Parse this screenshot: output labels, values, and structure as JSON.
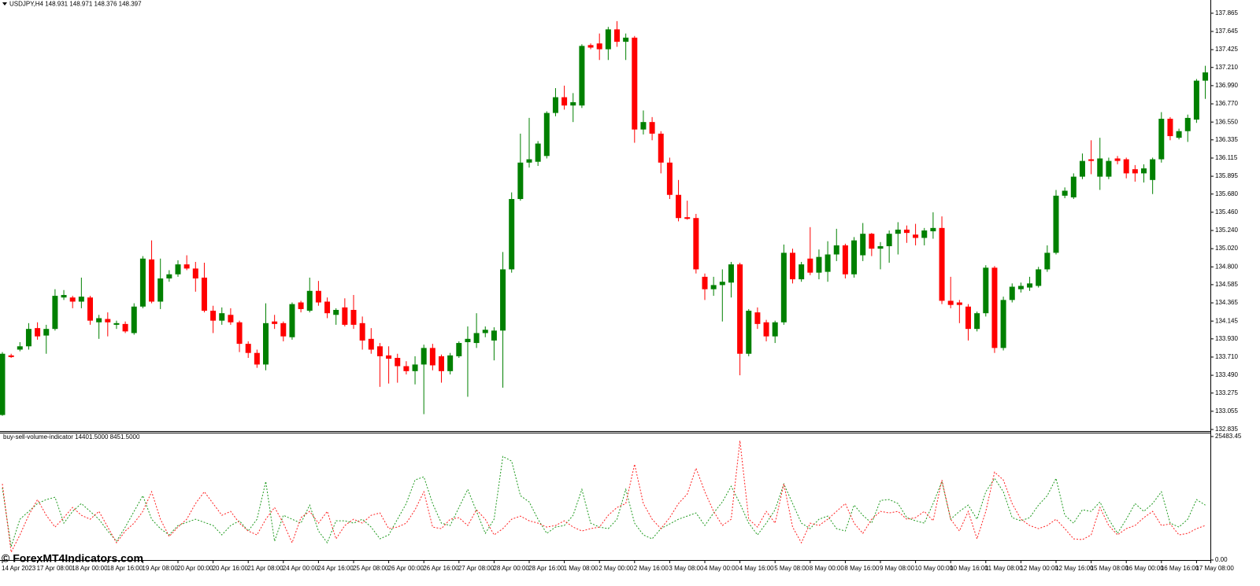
{
  "chart_data": [
    {
      "type": "candlestick",
      "title": "USDJPY,H4  148.931 148.971 148.376 148.397",
      "up_color": "#008000",
      "down_color": "#ff0000",
      "categories": [
        "14 Apr 2023",
        null,
        null,
        null,
        "17 Apr 08:00",
        null,
        null,
        null,
        "18 Apr 00:00",
        null,
        null,
        null,
        "18 Apr 16:00",
        null,
        null,
        null,
        "19 Apr 08:00",
        null,
        null,
        null,
        "20 Apr 00:00",
        null,
        null,
        null,
        "20 Apr 16:00",
        null,
        null,
        null,
        "21 Apr 08:00",
        null,
        null,
        null,
        "24 Apr 00:00",
        null,
        null,
        null,
        "24 Apr 16:00",
        null,
        null,
        null,
        "25 Apr 08:00",
        null,
        null,
        null,
        "26 Apr 00:00",
        null,
        null,
        null,
        "26 Apr 16:00",
        null,
        null,
        null,
        "27 Apr 08:00",
        null,
        null,
        null,
        "28 Apr 00:00",
        null,
        null,
        null,
        "28 Apr 16:00",
        null,
        null,
        null,
        "1 May 08:00",
        null,
        null,
        null,
        "2 May 00:00",
        null,
        null,
        null,
        "2 May 16:00",
        null,
        null,
        null,
        "3 May 08:00",
        null,
        null,
        null,
        "4 May 00:00",
        null,
        null,
        null,
        "4 May 16:00",
        null,
        null,
        null,
        "5 May 08:00",
        null,
        null,
        null,
        "8 May 00:00",
        null,
        null,
        null,
        "8 May 16:00",
        null,
        null,
        null,
        "9 May 08:00",
        null,
        null,
        null,
        "10 May 00:00",
        null,
        null,
        null,
        "10 May 16:00",
        null,
        null,
        null,
        "11 May 08:00",
        null,
        null,
        null,
        "12 May 00:00",
        null,
        null,
        null,
        "12 May 16:00",
        null,
        null,
        null,
        "15 May 08:00",
        null,
        null,
        null,
        "16 May 00:00",
        null,
        null,
        null,
        "16 May 16:00",
        null,
        null,
        null,
        "17 May 08:00",
        null
      ],
      "open": [
        133.01,
        133.73,
        133.8,
        133.84,
        134.06,
        133.97,
        134.05,
        134.43,
        134.43,
        134.38,
        134.43,
        134.13,
        134.17,
        134.1,
        134.11,
        134.0,
        134.32,
        134.89,
        134.38,
        134.66,
        134.71,
        134.83,
        134.78,
        134.67,
        134.27,
        134.15,
        134.22,
        134.13,
        133.87,
        133.76,
        133.62,
        134.14,
        134.12,
        133.95,
        134.37,
        134.27,
        134.51,
        134.38,
        134.22,
        134.31,
        134.28,
        134.12,
        133.93,
        133.84,
        133.73,
        133.7,
        133.6,
        133.54,
        133.62,
        133.82,
        133.72,
        133.54,
        133.72,
        133.89,
        133.88,
        134.0,
        133.91,
        134.03,
        134.77,
        135.62,
        136.06,
        136.07,
        136.14,
        136.66,
        136.85,
        136.75,
        136.75,
        137.48,
        137.5,
        137.43,
        137.67,
        137.52,
        137.57,
        136.46,
        136.55,
        136.41,
        136.06,
        135.67,
        135.4,
        135.39,
        134.68,
        134.53,
        134.58,
        134.61,
        134.83,
        133.75,
        134.25,
        134.13,
        133.96,
        134.13,
        134.97,
        134.65,
        134.9,
        134.73,
        134.74,
        134.95,
        135.06,
        134.71,
        134.94,
        135.2,
        135.02,
        135.05,
        135.2,
        135.25,
        135.19,
        135.15,
        135.23,
        135.27,
        134.39,
        134.37,
        134.32,
        134.05,
        134.24,
        134.79,
        133.82,
        134.4,
        134.53,
        134.55,
        134.57,
        134.77,
        134.97,
        135.66,
        135.64,
        135.89,
        136.1,
        135.89,
        135.89,
        136.11,
        136.1,
        135.98,
        135.93,
        135.85,
        136.1,
        136.59,
        136.36,
        136.44,
        136.58,
        137.05
      ],
      "high": [
        133.77,
        133.75,
        133.89,
        134.12,
        134.13,
        134.1,
        134.53,
        134.52,
        134.45,
        134.67,
        134.45,
        134.22,
        134.25,
        134.15,
        134.14,
        134.36,
        134.93,
        135.12,
        134.9,
        134.76,
        134.88,
        134.94,
        134.86,
        134.85,
        134.33,
        134.31,
        134.3,
        134.15,
        133.9,
        133.8,
        134.36,
        134.22,
        134.14,
        134.37,
        134.39,
        134.67,
        134.63,
        134.43,
        134.3,
        134.42,
        134.46,
        134.2,
        134.06,
        133.88,
        133.84,
        133.75,
        133.66,
        133.72,
        133.86,
        133.87,
        133.74,
        133.76,
        133.9,
        134.08,
        134.24,
        134.08,
        134.07,
        134.98,
        135.7,
        136.41,
        136.6,
        136.32,
        136.68,
        136.96,
        136.99,
        136.9,
        137.49,
        137.5,
        137.62,
        137.7,
        137.77,
        137.62,
        137.59,
        136.69,
        136.61,
        136.44,
        136.12,
        135.85,
        135.6,
        135.44,
        134.72,
        134.68,
        134.77,
        134.86,
        134.85,
        134.29,
        134.31,
        134.16,
        134.15,
        135.07,
        135.02,
        134.86,
        135.28,
        135.01,
        135.11,
        135.26,
        135.08,
        135.16,
        135.33,
        135.21,
        135.1,
        135.24,
        135.34,
        135.3,
        135.32,
        135.27,
        135.46,
        135.41,
        134.68,
        134.4,
        134.35,
        134.26,
        134.82,
        134.81,
        134.44,
        134.6,
        134.61,
        134.68,
        134.8,
        135.06,
        135.73,
        135.76,
        135.93,
        136.17,
        136.33,
        136.36,
        136.12,
        136.14,
        136.12,
        136.03,
        136.04,
        136.12,
        136.67,
        136.61,
        136.47,
        136.64,
        137.07,
        137.23
      ],
      "low": [
        133.0,
        133.7,
        133.78,
        133.8,
        133.92,
        133.75,
        134.03,
        134.4,
        134.3,
        134.3,
        134.1,
        133.93,
        133.96,
        134.05,
        134.0,
        133.98,
        134.3,
        134.36,
        134.29,
        134.62,
        134.68,
        134.76,
        134.5,
        134.25,
        134.0,
        134.1,
        134.1,
        133.77,
        133.7,
        133.58,
        133.55,
        134.05,
        133.9,
        133.92,
        134.25,
        134.25,
        134.33,
        134.18,
        134.1,
        134.08,
        134.05,
        133.8,
        133.75,
        133.35,
        133.39,
        133.4,
        133.5,
        133.38,
        133.02,
        133.55,
        133.4,
        133.5,
        133.7,
        133.23,
        133.82,
        133.95,
        133.67,
        133.34,
        134.73,
        135.6,
        136.0,
        136.02,
        136.11,
        136.62,
        136.7,
        136.55,
        136.72,
        137.43,
        137.3,
        137.3,
        137.46,
        137.3,
        136.3,
        136.4,
        136.33,
        135.93,
        135.62,
        135.35,
        135.37,
        134.72,
        134.4,
        134.45,
        134.14,
        134.43,
        133.49,
        133.72,
        134.05,
        133.9,
        133.88,
        134.1,
        134.6,
        134.62,
        134.7,
        134.65,
        134.62,
        134.87,
        134.66,
        134.67,
        134.87,
        134.93,
        134.77,
        134.85,
        134.95,
        135.09,
        135.06,
        135.06,
        135.14,
        134.35,
        134.3,
        134.12,
        133.91,
        134.02,
        134.2,
        133.76,
        133.79,
        134.37,
        134.49,
        134.51,
        134.55,
        134.74,
        134.95,
        135.63,
        135.62,
        135.86,
        135.92,
        135.73,
        135.86,
        136.04,
        135.87,
        135.83,
        135.82,
        135.68,
        136.06,
        136.33,
        136.34,
        136.31,
        136.54,
        136.83
      ],
      "close": [
        133.75,
        133.71,
        133.84,
        134.05,
        133.96,
        134.05,
        134.45,
        134.46,
        134.38,
        134.44,
        134.15,
        134.18,
        134.13,
        134.12,
        134.02,
        134.32,
        134.9,
        134.38,
        134.66,
        134.71,
        134.83,
        134.78,
        134.66,
        134.27,
        134.15,
        134.24,
        134.13,
        133.87,
        133.76,
        133.62,
        134.12,
        134.11,
        133.96,
        134.35,
        134.29,
        134.51,
        134.37,
        134.24,
        134.28,
        134.1,
        134.1,
        133.91,
        133.8,
        133.72,
        133.69,
        133.6,
        133.54,
        133.62,
        133.82,
        133.61,
        133.54,
        133.73,
        133.88,
        133.93,
        134.0,
        134.04,
        134.03,
        134.77,
        135.62,
        136.06,
        136.1,
        136.29,
        136.66,
        136.85,
        136.75,
        136.79,
        137.47,
        137.45,
        137.43,
        137.67,
        137.52,
        137.57,
        136.46,
        136.55,
        136.41,
        136.06,
        135.67,
        135.39,
        135.38,
        134.77,
        134.53,
        134.58,
        134.62,
        134.83,
        133.75,
        134.27,
        134.11,
        133.96,
        134.13,
        134.97,
        134.65,
        134.83,
        134.73,
        134.92,
        134.95,
        135.06,
        134.71,
        135.12,
        135.2,
        135.02,
        135.05,
        135.2,
        135.25,
        135.21,
        135.15,
        135.24,
        135.27,
        134.39,
        134.34,
        134.34,
        134.05,
        134.24,
        134.79,
        133.82,
        134.4,
        134.56,
        134.57,
        134.6,
        134.77,
        134.97,
        135.66,
        135.72,
        135.89,
        136.08,
        136.08,
        136.11,
        136.08,
        136.08,
        135.93,
        135.93,
        135.99,
        136.1,
        136.59,
        136.38,
        136.44,
        136.6,
        137.05,
        137.15
      ],
      "ylim": [
        132.816,
        138.025
      ],
      "yticks": [
        137.865,
        137.645,
        137.425,
        {
          "value": 137.21,
          "label": "137.210"
        },
        {
          "value": 136.99,
          "label": "136.990"
        },
        {
          "value": 136.77,
          "label": "136.770"
        },
        {
          "value": 136.55,
          "label": "136.550"
        },
        136.335,
        136.115,
        135.895,
        {
          "value": 135.68,
          "label": "135.680"
        },
        {
          "value": 135.46,
          "label": "135.460"
        },
        {
          "value": 135.24,
          "label": "135.240"
        },
        {
          "value": 135.02,
          "label": "135.020"
        },
        {
          "value": 134.8,
          "label": "134.800"
        },
        134.585,
        134.365,
        134.145,
        {
          "value": 133.93,
          "label": "133.930"
        },
        {
          "value": 133.71,
          "label": "133.710"
        },
        {
          "value": 133.49,
          "label": "133.490"
        },
        133.275,
        133.055,
        132.835
      ]
    },
    {
      "type": "line",
      "title": "buy-sell-volume-indicator 14401.5000 8451.5000",
      "series": [
        {
          "color": "#1f9a1f",
          "values": [
            14904,
            2754,
            8424,
            10044,
            11664,
            12474,
            12960,
            7614,
            10044,
            11664,
            10044,
            8424,
            5994,
            3888,
            6804,
            10044,
            13284,
            8424,
            6480,
            5184,
            7128,
            7776,
            8424,
            7776,
            7128,
            5184,
            7128,
            8100,
            5994,
            8424,
            16200,
            3888,
            9234,
            8424,
            7614,
            11340,
            5994,
            3564,
            8100,
            8100,
            7614,
            8424,
            6804,
            4374,
            5184,
            8424,
            11664,
            16524,
            17172,
            11664,
            7614,
            7128,
            10854,
            14580,
            10044,
            5508,
            8424,
            21384,
            20412,
            13284,
            11988,
            8424,
            5508,
            6804,
            7128,
            9234,
            14580,
            7614,
            6804,
            6480,
            8424,
            14580,
            7614,
            5184,
            4374,
            6480,
            7452,
            8424,
            9072,
            9720,
            7128,
            9720,
            11988,
            15228,
            11664,
            7614,
            5184,
            7614,
            10368,
            15714,
            11664,
            7614,
            6480,
            8424,
            9072,
            6480,
            5994,
            11340,
            9234,
            7614,
            12312,
            12474,
            11664,
            8748,
            8100,
            7614,
            11664,
            16200,
            8424,
            10044,
            11340,
            8424,
            14094,
            16848,
            14094,
            8748,
            8100,
            8748,
            11340,
            13284,
            16848,
            9234,
            7614,
            10368,
            10044,
            11988,
            8424,
            5508,
            8424,
            11664,
            10044,
            11664,
            14094,
            7614,
            6804,
            8424,
            12474,
            11340
          ]
        },
        {
          "color": "#ff2020",
          "values": [
            15714,
            1620,
            5184,
            9234,
            12474,
            9234,
            6804,
            8748,
            10854,
            9234,
            8424,
            10044,
            6804,
            3564,
            5994,
            7614,
            10044,
            14094,
            8424,
            4860,
            6804,
            8424,
            11664,
            14094,
            11664,
            9234,
            10044,
            7614,
            5994,
            5184,
            8424,
            10854,
            7614,
            3564,
            8748,
            10044,
            7614,
            10044,
            4374,
            7128,
            8424,
            7614,
            9234,
            9720,
            6480,
            6804,
            7614,
            10368,
            14094,
            6804,
            6480,
            8424,
            8748,
            7128,
            10368,
            8424,
            5184,
            6480,
            8424,
            9072,
            8100,
            7614,
            6804,
            7128,
            8100,
            6804,
            5994,
            6480,
            6804,
            9234,
            10854,
            11664,
            19764,
            11664,
            8424,
            6480,
            8748,
            11664,
            13608,
            18954,
            14094,
            10044,
            7128,
            8424,
            24624,
            8424,
            6804,
            10044,
            7614,
            15714,
            6804,
            3564,
            7614,
            7128,
            8424,
            10044,
            11664,
            7614,
            5508,
            8424,
            10044,
            9720,
            10044,
            8424,
            8748,
            10044,
            8100,
            16524,
            8424,
            5994,
            10044,
            4374,
            10044,
            18144,
            16524,
            11664,
            8424,
            7128,
            6480,
            7128,
            8424,
            6480,
            4374,
            4212,
            5184,
            10854,
            7128,
            5184,
            6480,
            7128,
            8748,
            10044,
            7128,
            7452,
            5184,
            5508,
            6480,
            7128
          ]
        }
      ],
      "ylim": [
        0,
        25483.45
      ],
      "yticks": [
        {
          "value": 0,
          "label": "0.00"
        },
        25483.45
      ]
    }
  ],
  "watermark": "© ForexMT4Indicators.com"
}
